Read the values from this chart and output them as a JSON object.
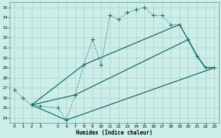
{
  "xlabel": "Humidex (Indice chaleur)",
  "bg_color": "#cceee8",
  "grid_color": "#aacccc",
  "line_color": "#1a7068",
  "xlim": [
    -0.5,
    23.5
  ],
  "ylim": [
    23.5,
    35.5
  ],
  "yticks": [
    24,
    25,
    26,
    27,
    28,
    29,
    30,
    31,
    32,
    33,
    34,
    35
  ],
  "xticks": [
    0,
    1,
    2,
    3,
    5,
    6,
    7,
    8,
    9,
    10,
    11,
    12,
    13,
    14,
    15,
    16,
    17,
    18,
    19,
    20,
    21,
    22,
    23
  ],
  "series": [
    {
      "x": [
        0,
        1,
        2,
        3,
        5,
        6,
        7,
        8,
        9,
        10,
        11,
        12,
        13,
        14,
        15,
        16,
        17,
        18,
        19,
        20,
        21,
        22,
        23
      ],
      "y": [
        26.8,
        26.0,
        25.3,
        25.2,
        25.0,
        23.8,
        26.3,
        29.3,
        31.8,
        29.3,
        34.2,
        33.8,
        34.5,
        34.8,
        35.0,
        34.2,
        34.2,
        33.3,
        33.3,
        31.8,
        30.2,
        29.0,
        29.0
      ],
      "linestyle": "dotted",
      "marker": "+",
      "markersize": 4,
      "linewidth": 0.9
    },
    {
      "x": [
        2,
        6,
        23
      ],
      "y": [
        25.3,
        23.8,
        29.0
      ],
      "linestyle": "-",
      "marker": null,
      "markersize": 0,
      "linewidth": 1.0
    },
    {
      "x": [
        2,
        7,
        20,
        21,
        22,
        23
      ],
      "y": [
        25.3,
        26.3,
        31.8,
        30.2,
        29.0,
        29.0
      ],
      "linestyle": "-",
      "marker": null,
      "markersize": 0,
      "linewidth": 1.0
    },
    {
      "x": [
        2,
        8,
        19,
        20,
        21,
        22,
        23
      ],
      "y": [
        25.3,
        29.3,
        33.3,
        31.8,
        30.2,
        29.0,
        29.0
      ],
      "linestyle": "-",
      "marker": null,
      "markersize": 0,
      "linewidth": 1.0
    }
  ]
}
